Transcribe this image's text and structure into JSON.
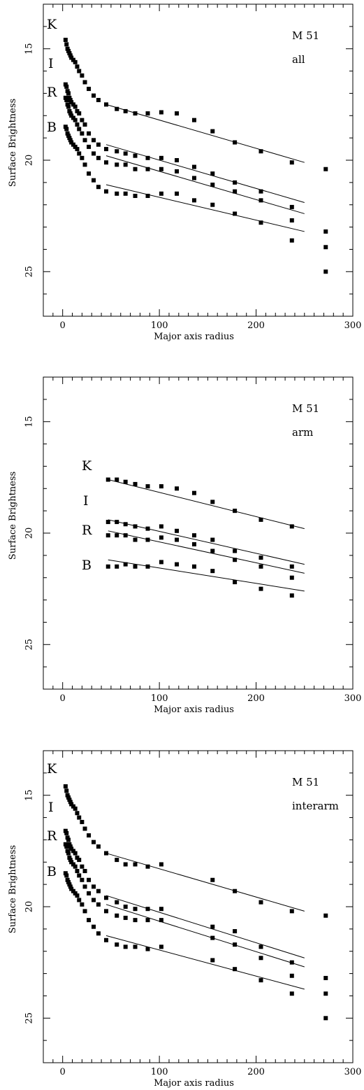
{
  "chart_data": [
    {
      "type": "scatter",
      "title": "",
      "xlabel": "Major axis radius",
      "ylabel": "Surface Brightness",
      "xlim": [
        -20,
        300
      ],
      "ylim": [
        27,
        13
      ],
      "y_inverted": true,
      "x_ticks": [
        0,
        100,
        200,
        300
      ],
      "y_ticks": [
        15,
        20,
        25
      ],
      "annotations": [
        "M 51",
        "all"
      ],
      "band_labels": [
        "K",
        "I",
        "R",
        "B"
      ],
      "series": [
        {
          "name": "K",
          "x": [
            3,
            4,
            5,
            6,
            7,
            8,
            9,
            11,
            13,
            15,
            17,
            20,
            23,
            27,
            32,
            37,
            45,
            56,
            65,
            75,
            88,
            102,
            118,
            136,
            155,
            178,
            205,
            237
          ],
          "y": [
            14.6,
            14.8,
            15.0,
            15.1,
            15.2,
            15.3,
            15.4,
            15.5,
            15.6,
            15.8,
            16.0,
            16.2,
            16.5,
            16.8,
            17.1,
            17.3,
            17.5,
            17.7,
            17.8,
            17.9,
            17.9,
            17.85,
            17.9,
            18.2,
            18.7,
            19.2,
            19.6,
            20.1
          ],
          "fit": {
            "x": [
              45,
              250
            ],
            "y": [
              17.5,
              20.1
            ]
          }
        },
        {
          "name": "I",
          "x": [
            3,
            4,
            5,
            6,
            7,
            8,
            9,
            11,
            13,
            15,
            17,
            20,
            23,
            27,
            32,
            37,
            45,
            56,
            65,
            75,
            88,
            102,
            118,
            136,
            155,
            178,
            205,
            237
          ],
          "y": [
            16.6,
            16.7,
            16.9,
            17.0,
            17.2,
            17.3,
            17.4,
            17.5,
            17.6,
            17.8,
            17.9,
            18.2,
            18.4,
            18.8,
            19.1,
            19.3,
            19.5,
            19.6,
            19.7,
            19.8,
            19.9,
            19.9,
            20.0,
            20.3,
            20.6,
            21.0,
            21.4,
            22.1
          ],
          "fit": {
            "x": [
              45,
              250
            ],
            "y": [
              19.3,
              21.9
            ]
          }
        },
        {
          "name": "R",
          "x": [
            3,
            4,
            5,
            6,
            7,
            8,
            9,
            11,
            13,
            15,
            17,
            20,
            23,
            27,
            32,
            37,
            45,
            56,
            65,
            75,
            88,
            102,
            118,
            136,
            155,
            178,
            205,
            237
          ],
          "y": [
            17.2,
            17.3,
            17.5,
            17.6,
            17.8,
            17.9,
            18.0,
            18.1,
            18.2,
            18.4,
            18.6,
            18.8,
            19.1,
            19.4,
            19.7,
            19.9,
            20.1,
            20.2,
            20.2,
            20.4,
            20.4,
            20.4,
            20.5,
            20.8,
            21.1,
            21.4,
            21.8,
            22.7
          ],
          "fit": {
            "x": [
              45,
              250
            ],
            "y": [
              19.8,
              22.4
            ]
          }
        },
        {
          "name": "B",
          "x": [
            3,
            4,
            5,
            6,
            7,
            8,
            9,
            11,
            13,
            15,
            17,
            20,
            23,
            27,
            32,
            37,
            45,
            56,
            65,
            75,
            88,
            102,
            118,
            136,
            155,
            178,
            205,
            237
          ],
          "y": [
            18.5,
            18.6,
            18.8,
            18.9,
            19.0,
            19.1,
            19.2,
            19.3,
            19.4,
            19.5,
            19.7,
            19.9,
            20.2,
            20.6,
            20.9,
            21.2,
            21.4,
            21.5,
            21.5,
            21.6,
            21.6,
            21.5,
            21.5,
            21.8,
            22.0,
            22.4,
            22.8,
            23.6
          ],
          "fit": {
            "x": [
              45,
              250
            ],
            "y": [
              21.1,
              23.2
            ]
          }
        }
      ],
      "extra_points": {
        "x": [
          272,
          272,
          272,
          272
        ],
        "y": [
          20.4,
          23.2,
          23.9,
          25.0
        ]
      }
    },
    {
      "type": "scatter",
      "title": "",
      "xlabel": "Major axis radius",
      "ylabel": "Surface Brightness",
      "xlim": [
        -20,
        300
      ],
      "ylim": [
        27,
        13
      ],
      "y_inverted": true,
      "x_ticks": [
        0,
        100,
        200,
        300
      ],
      "y_ticks": [
        15,
        20,
        25
      ],
      "annotations": [
        "M 51",
        "arm"
      ],
      "band_labels": [
        "K",
        "I",
        "R",
        "B"
      ],
      "series": [
        {
          "name": "K",
          "x": [
            47,
            56,
            65,
            75,
            88,
            102,
            118,
            136,
            155,
            178,
            205,
            237
          ],
          "y": [
            17.6,
            17.6,
            17.7,
            17.8,
            17.9,
            17.9,
            18.0,
            18.2,
            18.6,
            19.0,
            19.4,
            19.7
          ],
          "fit": {
            "x": [
              47,
              250
            ],
            "y": [
              17.6,
              19.8
            ]
          }
        },
        {
          "name": "I",
          "x": [
            47,
            56,
            65,
            75,
            88,
            102,
            118,
            136,
            155,
            178,
            205,
            237
          ],
          "y": [
            19.5,
            19.5,
            19.6,
            19.7,
            19.8,
            19.7,
            19.9,
            20.1,
            20.3,
            20.8,
            21.1,
            21.5
          ],
          "fit": {
            "x": [
              47,
              250
            ],
            "y": [
              19.4,
              21.4
            ]
          }
        },
        {
          "name": "R",
          "x": [
            47,
            56,
            65,
            75,
            88,
            102,
            118,
            136,
            155,
            178,
            205,
            237
          ],
          "y": [
            20.1,
            20.1,
            20.1,
            20.3,
            20.3,
            20.2,
            20.3,
            20.5,
            20.8,
            21.2,
            21.5,
            22.0
          ],
          "fit": {
            "x": [
              47,
              250
            ],
            "y": [
              19.9,
              21.8
            ]
          }
        },
        {
          "name": "B",
          "x": [
            47,
            56,
            65,
            75,
            88,
            102,
            118,
            136,
            155,
            178,
            205,
            237
          ],
          "y": [
            21.5,
            21.5,
            21.4,
            21.5,
            21.5,
            21.3,
            21.4,
            21.5,
            21.7,
            22.2,
            22.5,
            22.8
          ],
          "fit": {
            "x": [
              47,
              250
            ],
            "y": [
              21.2,
              22.6
            ]
          }
        }
      ]
    },
    {
      "type": "scatter",
      "title": "",
      "xlabel": "Major axis radius",
      "ylabel": "Surface Brightness",
      "xlim": [
        -20,
        300
      ],
      "ylim": [
        27,
        13
      ],
      "y_inverted": true,
      "x_ticks": [
        0,
        100,
        200,
        300
      ],
      "y_ticks": [
        15,
        20,
        25
      ],
      "annotations": [
        "M 51",
        "interarm"
      ],
      "band_labels": [
        "K",
        "I",
        "R",
        "B"
      ],
      "series": [
        {
          "name": "K",
          "x": [
            3,
            4,
            5,
            6,
            7,
            8,
            9,
            11,
            13,
            15,
            17,
            20,
            23,
            27,
            32,
            37,
            45,
            56,
            65,
            75,
            88,
            102,
            155,
            178,
            205,
            237
          ],
          "y": [
            14.6,
            14.8,
            15.0,
            15.1,
            15.2,
            15.3,
            15.4,
            15.5,
            15.6,
            15.8,
            16.0,
            16.2,
            16.5,
            16.8,
            17.1,
            17.3,
            17.6,
            17.9,
            18.1,
            18.1,
            18.2,
            18.1,
            18.8,
            19.3,
            19.8,
            20.2
          ],
          "fit": {
            "x": [
              45,
              250
            ],
            "y": [
              17.6,
              20.2
            ]
          }
        },
        {
          "name": "I",
          "x": [
            3,
            4,
            5,
            6,
            7,
            8,
            9,
            11,
            13,
            15,
            17,
            20,
            23,
            27,
            32,
            37,
            45,
            56,
            65,
            75,
            88,
            102,
            155,
            178,
            205,
            237
          ],
          "y": [
            16.6,
            16.7,
            16.9,
            17.0,
            17.2,
            17.3,
            17.4,
            17.5,
            17.6,
            17.8,
            17.9,
            18.2,
            18.4,
            18.8,
            19.1,
            19.3,
            19.6,
            19.8,
            20.0,
            20.1,
            20.1,
            20.1,
            20.9,
            21.1,
            21.8,
            22.5
          ],
          "fit": {
            "x": [
              45,
              250
            ],
            "y": [
              19.5,
              22.3
            ]
          }
        },
        {
          "name": "R",
          "x": [
            3,
            4,
            5,
            6,
            7,
            8,
            9,
            11,
            13,
            15,
            17,
            20,
            23,
            27,
            32,
            37,
            45,
            56,
            65,
            75,
            88,
            102,
            155,
            178,
            205,
            237
          ],
          "y": [
            17.2,
            17.3,
            17.5,
            17.6,
            17.8,
            17.9,
            18.0,
            18.1,
            18.2,
            18.4,
            18.6,
            18.8,
            19.1,
            19.4,
            19.7,
            19.9,
            20.2,
            20.4,
            20.5,
            20.6,
            20.6,
            20.6,
            21.4,
            21.7,
            22.3,
            23.1
          ],
          "fit": {
            "x": [
              45,
              250
            ],
            "y": [
              19.9,
              22.7
            ]
          }
        },
        {
          "name": "B",
          "x": [
            3,
            4,
            5,
            6,
            7,
            8,
            9,
            11,
            13,
            15,
            17,
            20,
            23,
            27,
            32,
            37,
            45,
            56,
            65,
            75,
            88,
            102,
            155,
            178,
            205,
            237
          ],
          "y": [
            18.5,
            18.6,
            18.8,
            18.9,
            19.0,
            19.1,
            19.2,
            19.3,
            19.4,
            19.5,
            19.7,
            19.9,
            20.2,
            20.6,
            20.9,
            21.2,
            21.5,
            21.7,
            21.8,
            21.8,
            21.9,
            21.8,
            22.4,
            22.8,
            23.3,
            23.9
          ],
          "fit": {
            "x": [
              45,
              250
            ],
            "y": [
              21.3,
              23.7
            ]
          }
        }
      ],
      "extra_points": {
        "x": [
          272,
          272,
          272,
          272
        ],
        "y": [
          20.4,
          23.2,
          23.9,
          25.0
        ]
      }
    }
  ]
}
